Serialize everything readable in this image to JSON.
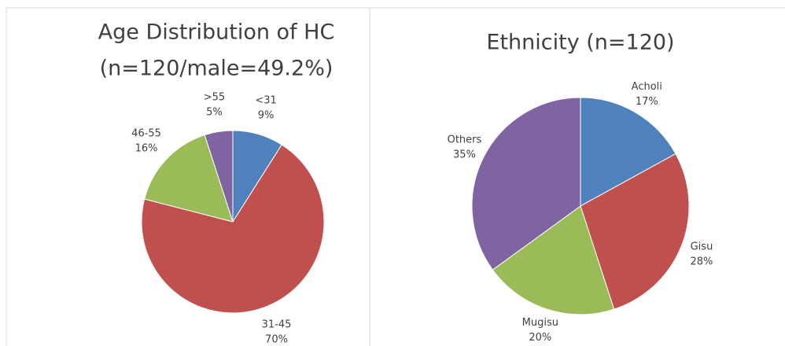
{
  "chart_data": [
    {
      "type": "pie",
      "title": [
        "Age Distribution  of HC",
        "(n=120/male=49.2%)"
      ],
      "categories": [
        "<31",
        "31-45",
        "46-55",
        ">55"
      ],
      "values": [
        9,
        70,
        16,
        5
      ],
      "value_labels": [
        "9%",
        "70%",
        "16%",
        "5%"
      ],
      "colors": [
        "#4f81bd",
        "#c0504d",
        "#9bbb59",
        "#8064a2"
      ]
    },
    {
      "type": "pie",
      "title": [
        "Ethnicity (n=120)"
      ],
      "categories": [
        "Acholi",
        "Gisu",
        "Mugisu",
        "Others"
      ],
      "values": [
        17,
        28,
        20,
        35
      ],
      "value_labels": [
        "17%",
        "28%",
        "20%",
        "35%"
      ],
      "colors": [
        "#4f81bd",
        "#c0504d",
        "#9bbb59",
        "#8064a2"
      ]
    }
  ]
}
